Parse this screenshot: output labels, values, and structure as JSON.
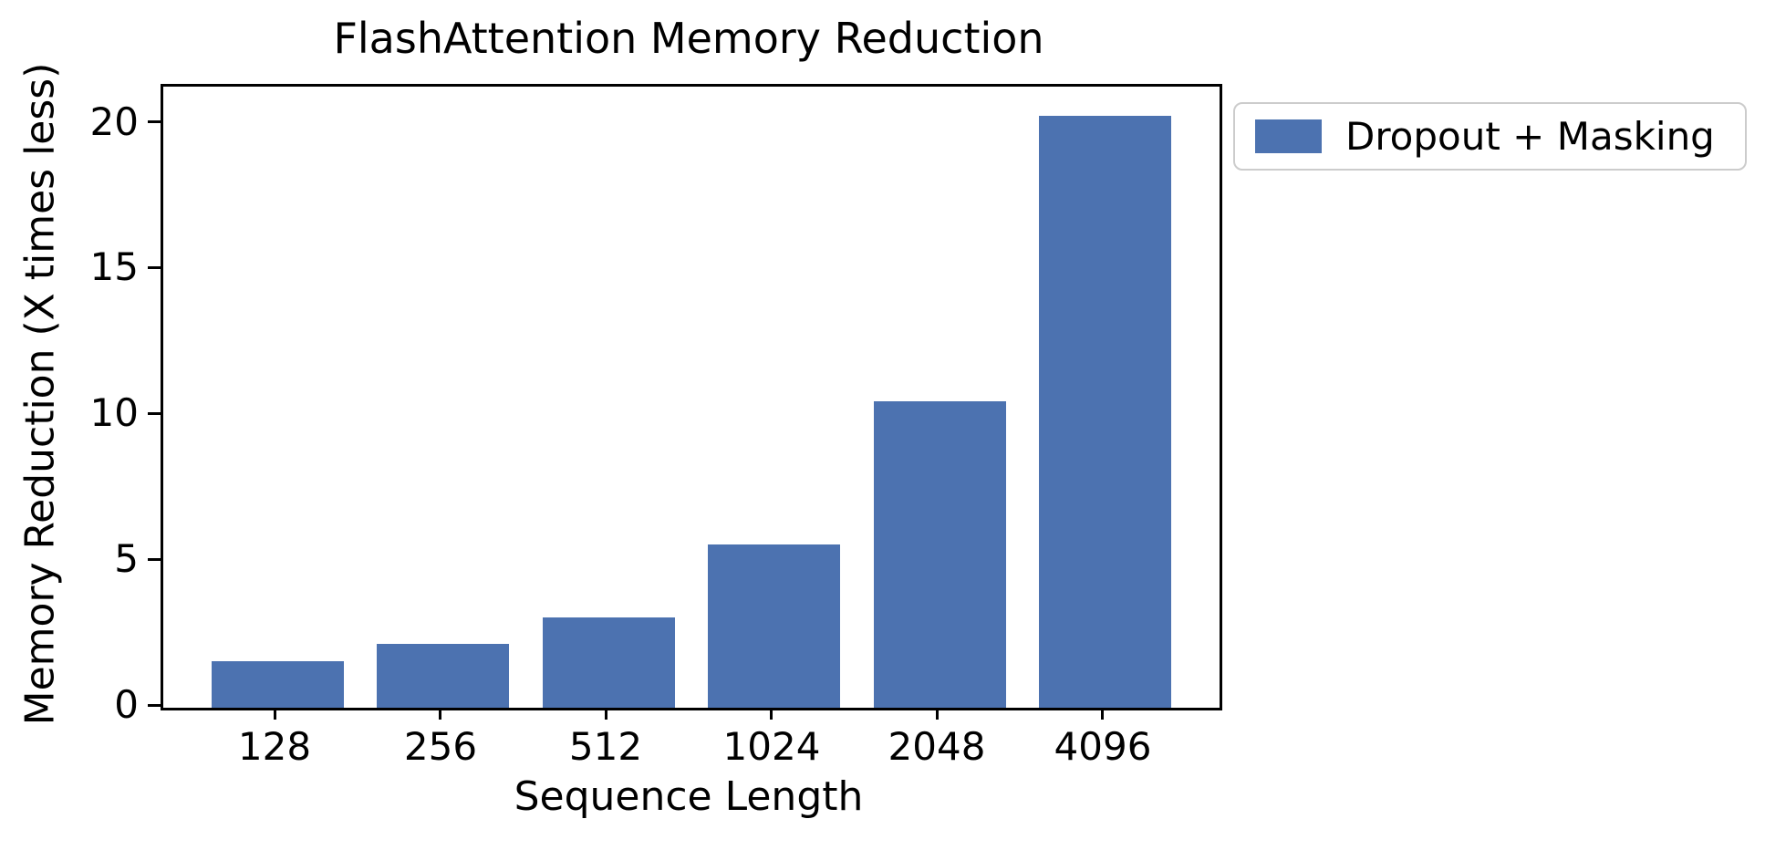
{
  "figure": {
    "background_color": "#ffffff",
    "axis_color": "#000000"
  },
  "chart_data": {
    "type": "bar",
    "title": "FlashAttention Memory Reduction",
    "xlabel": "Sequence Length",
    "ylabel": "Memory Reduction (X times less)",
    "categories": [
      "128",
      "256",
      "512",
      "1024",
      "2048",
      "4096"
    ],
    "series": [
      {
        "name": "Dropout + Masking",
        "color": "#4C72B0",
        "values": [
          1.6,
          2.2,
          3.1,
          5.6,
          10.5,
          20.3
        ]
      }
    ],
    "yticks": [
      0,
      5,
      10,
      15,
      20
    ],
    "ylim": [
      0,
      21.3
    ],
    "grid": false,
    "legend": {
      "entries": [
        "Dropout + Masking"
      ],
      "position": "outside upper right",
      "border_color": "#cccccc"
    }
  }
}
